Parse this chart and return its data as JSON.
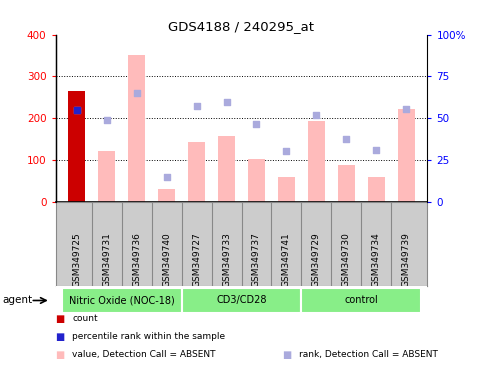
{
  "title": "GDS4188 / 240295_at",
  "samples": [
    "GSM349725",
    "GSM349731",
    "GSM349736",
    "GSM349740",
    "GSM349727",
    "GSM349733",
    "GSM349737",
    "GSM349741",
    "GSM349729",
    "GSM349730",
    "GSM349734",
    "GSM349739"
  ],
  "bar_values": [
    265,
    120,
    350,
    30,
    142,
    158,
    103,
    60,
    192,
    88,
    58,
    222
  ],
  "first_bar_color": "#cc0000",
  "absent_bar_color": "#ffbbbb",
  "rank_dots": [
    220,
    196,
    260,
    60,
    228,
    238,
    185,
    122,
    208,
    150,
    123,
    222
  ],
  "rank_dot_color": "#aaaadd",
  "percentile_dot_value": 220,
  "percentile_dot_color": "#2222cc",
  "percentile_dot_index": 0,
  "ylim_left": [
    0,
    400
  ],
  "yticks_left": [
    0,
    100,
    200,
    300,
    400
  ],
  "ytick_labels_left": [
    "0",
    "100",
    "200",
    "300",
    "400"
  ],
  "ytick_labels_right": [
    "0",
    "25",
    "50",
    "75",
    "100%"
  ],
  "grid_lines": [
    100,
    200,
    300
  ],
  "groups": [
    {
      "label": "Nitric Oxide (NOC-18)",
      "start": 0,
      "end": 4,
      "color": "#88ee88"
    },
    {
      "label": "CD3/CD28",
      "start": 4,
      "end": 8,
      "color": "#88ee88"
    },
    {
      "label": "control",
      "start": 8,
      "end": 12,
      "color": "#88ee88"
    }
  ],
  "legend_items": [
    {
      "color": "#cc0000",
      "label": "count"
    },
    {
      "color": "#2222cc",
      "label": "percentile rank within the sample"
    },
    {
      "color": "#ffbbbb",
      "label": "value, Detection Call = ABSENT"
    },
    {
      "color": "#aaaadd",
      "label": "rank, Detection Call = ABSENT"
    }
  ],
  "bg_sample_row": "#cccccc",
  "sample_row_border_color": "#999999"
}
